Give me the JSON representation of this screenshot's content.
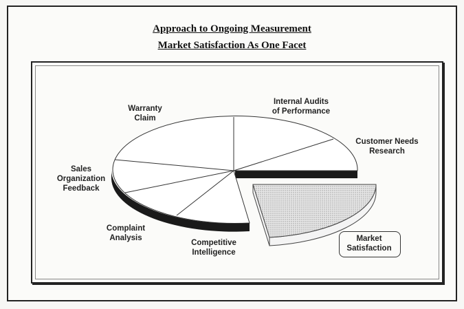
{
  "title": {
    "line1": "Approach to Ongoing Measurement",
    "line2": "Market Satisfaction As One Facet"
  },
  "segments": [
    {
      "label_lines": [
        "Warranty",
        "Claim"
      ]
    },
    {
      "label_lines": [
        "Internal Audits",
        "of Performance"
      ]
    },
    {
      "label_lines": [
        "Customer Needs",
        "Research"
      ]
    },
    {
      "label_lines": [
        "Sales",
        "Organization",
        "Feedback"
      ]
    },
    {
      "label_lines": [
        "Complaint",
        "Analysis"
      ]
    },
    {
      "label_lines": [
        "Competitive",
        "Intelligence"
      ]
    },
    {
      "label_lines": [
        "Market",
        "Satisfaction"
      ],
      "exploded": true,
      "fill": "dotted-gray"
    }
  ],
  "colors": {
    "ink": "#222222",
    "side": "#1a1a1a",
    "exploded_fill": "#dcdcdc"
  }
}
